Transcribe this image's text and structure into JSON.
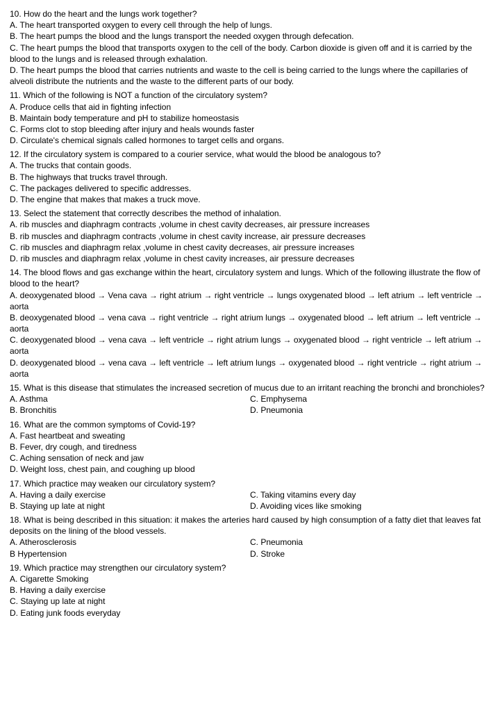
{
  "q10": {
    "stem": "10. How do the heart and the lungs work together?",
    "A": "A. The heart transported oxygen to every cell through the help of lungs.",
    "B": "B. The heart pumps the blood and the lungs transport the needed oxygen through defecation.",
    "C": "C. The heart pumps the blood that transports oxygen to the cell of the body. Carbon dioxide is given off and it is carried by the blood to the lungs and is released through exhalation.",
    "D": "D. The heart pumps the blood that carries nutrients and waste to the cell is being carried to the lungs where the capillaries of alveoli distribute the nutrients and the waste to the different parts of our body."
  },
  "q11": {
    "stem": "11. Which of the following is NOT a function of the circulatory system?",
    "A": "A. Produce cells that aid in fighting infection",
    "B": "B. Maintain body temperature and pH to stabilize homeostasis",
    "C": "C. Forms clot to stop bleeding after injury and heals wounds faster",
    "D": "D. Circulate's chemical signals called hormones to target cells and organs."
  },
  "q12": {
    "stem": "12. If the circulatory system is compared to a courier service, what would the blood be analogous to?",
    "A": "A. The trucks that contain goods.",
    "B": "B. The highways that trucks travel through.",
    "C": "C. The packages delivered to specific addresses.",
    "D": "D. The engine that makes that makes a truck move."
  },
  "q13": {
    "stem": "13. Select the statement that correctly describes the method of inhalation.",
    "A": "A. rib muscles and diaphragm contracts ,volume in chest cavity decreases, air pressure increases",
    "B": "B. rib muscles and diaphragm contracts ,volume in chest cavity increase, air pressure decreases",
    "C": "C. rib muscles and diaphragm relax ,volume in chest cavity decreases, air pressure increases",
    "D": "D. rib muscles and diaphragm relax ,volume in chest cavity increases, air pressure decreases"
  },
  "q14": {
    "stem": "14. The blood flows and gas exchange within the heart, circulatory system and lungs. Which of the following illustrate the flow of blood to the heart?",
    "A": "A. deoxygenated blood → Vena cava → right atrium → right ventricle → lungs oxygenated blood → left atrium → left ventricle → aorta",
    "B": "B. deoxygenated blood → vena cava → right ventricle → right atrium lungs → oxygenated blood → left atrium → left ventricle → aorta",
    "C": "C. deoxygenated blood → vena cava → left ventricle → right atrium lungs → oxygenated blood → right ventricle → left atrium → aorta",
    "D": "D. deoxygenated blood → vena cava → left ventricle → left atrium lungs → oxygenated blood → right ventricle → right atrium → aorta"
  },
  "q15": {
    "stem": "15. What is this disease that stimulates the increased secretion of mucus due to an irritant reaching the bronchi and bronchioles?",
    "A": "A. Asthma",
    "B": "B. Bronchitis",
    "C": "C. Emphysema",
    "D": "D. Pneumonia"
  },
  "q16": {
    "stem": "16. What are the common symptoms of Covid-19?",
    "A": "A. Fast heartbeat and sweating",
    "B": "B. Fever, dry cough, and tiredness",
    "C": "C. Aching sensation of neck and jaw",
    "D": "D. Weight loss, chest pain, and coughing up blood"
  },
  "q17": {
    "stem": "17. Which practice may weaken our circulatory system?",
    "A": "A. Having a daily exercise",
    "B": "B. Staying up late at night",
    "C": "C. Taking vitamins every day",
    "D": "D. Avoiding vices like smoking"
  },
  "q18": {
    "stem": "18. What is being described in this situation: it makes the arteries hard caused by high consumption of a fatty diet that leaves fat deposits on the lining of the blood vessels.",
    "A": "A. Atherosclerosis",
    "B": "B Hypertension",
    "C": "C. Pneumonia",
    "D": "D. Stroke"
  },
  "q19": {
    "stem": "19. Which practice may strengthen our circulatory system?",
    "A": "A. Cigarette Smoking",
    "B": "B. Having a daily exercise",
    "C": "C. Staying up late at night",
    "D": "D. Eating junk foods everyday"
  }
}
